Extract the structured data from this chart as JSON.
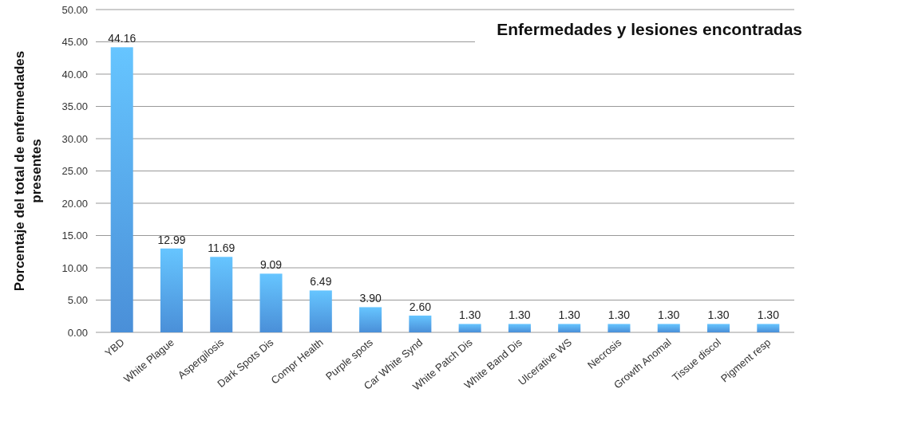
{
  "chart_data": {
    "type": "bar",
    "title": "Enfermedades y lesiones encontradas",
    "ylabel": "Porcentaje del total de enfermedades presentes",
    "categories": [
      "YBD",
      "White Plague",
      "Aspergilosis",
      "Dark Spots Dis",
      "Compr Health",
      "Purple spots",
      "Car White Synd",
      "White Patch Dis",
      "White Band Dis",
      "Ulcerative WS",
      "Necrosis",
      "Growth Anomal",
      "Tissue discol",
      "Pigment resp"
    ],
    "values": [
      44.16,
      12.99,
      11.69,
      9.09,
      6.49,
      3.9,
      2.6,
      1.3,
      1.3,
      1.3,
      1.3,
      1.3,
      1.3,
      1.3
    ],
    "value_labels": [
      "44.16",
      "12.99",
      "11.69",
      "9.09",
      "6.49",
      "3.90",
      "2.60",
      "1.30",
      "1.30",
      "1.30",
      "1.30",
      "1.30",
      "1.30",
      "1.30"
    ],
    "color": "#4a8fd8",
    "ylim": [
      0,
      50
    ],
    "yticks": [
      {
        "value": 0,
        "label": "0.00"
      },
      {
        "value": 5,
        "label": "5.00"
      },
      {
        "value": 10,
        "label": "10.00"
      },
      {
        "value": 15,
        "label": "15.00"
      },
      {
        "value": 20,
        "label": "20.00"
      },
      {
        "value": 25,
        "label": "25.00"
      },
      {
        "value": 30,
        "label": "30.00"
      },
      {
        "value": 35,
        "label": "35.00"
      },
      {
        "value": 40,
        "label": "40.00"
      },
      {
        "value": 45,
        "label": "45.00"
      },
      {
        "value": 50,
        "label": "50.00"
      }
    ],
    "grid": "y"
  }
}
